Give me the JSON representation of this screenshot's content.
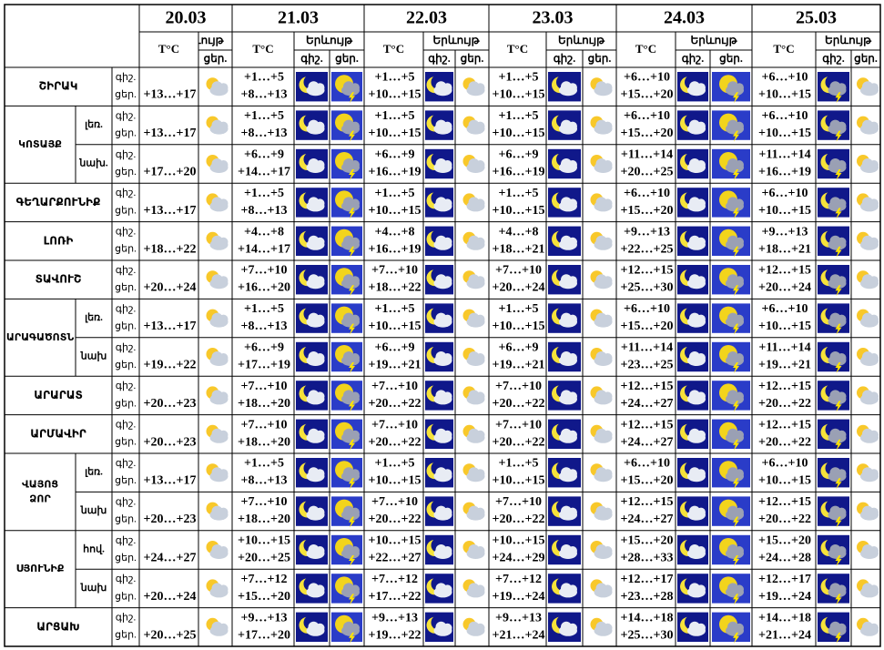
{
  "header": {
    "dates": [
      "20.03",
      "21.03",
      "22.03",
      "23.03",
      "24.03",
      "25.03"
    ],
    "temp_label": "T°C",
    "phenomenon_label": "Երևույթ",
    "night_label": "գիշ.",
    "day_label": "ցեր."
  },
  "regions": [
    {
      "name": "ՇԻՐԱԿ",
      "rows": [
        {
          "day": [
            "+13…+17",
            "+8…+13",
            "+10…+15",
            "+10…+15",
            "+15…+20",
            "+10…+15"
          ],
          "night": [
            "+1…+5",
            "+1…+5",
            "+1…+5",
            "+6…+10",
            "+6…+10"
          ]
        }
      ]
    },
    {
      "name": "ԿՈՏԱՅՔ",
      "rows": [
        {
          "zone": "լեռ.",
          "day": [
            "+13…+17",
            "+8…+13",
            "+10…+15",
            "+10…+15",
            "+15…+20",
            "+10…+15"
          ],
          "night": [
            "+1…+5",
            "+1…+5",
            "+1…+5",
            "+6…+10",
            "+6…+10"
          ]
        },
        {
          "zone": "նախ.",
          "day": [
            "+17…+20",
            "+14…+17",
            "+16…+19",
            "+16…+19",
            "+20…+25",
            "+16…+19"
          ],
          "night": [
            "+6…+9",
            "+6…+9",
            "+6…+9",
            "+11…+14",
            "+11…+14"
          ]
        }
      ]
    },
    {
      "name": "ԳԵՂԱՐՔՈՒՆԻՔ",
      "rows": [
        {
          "day": [
            "+13…+17",
            "+8…+13",
            "+10…+15",
            "+10…+15",
            "+15…+20",
            "+10…+15"
          ],
          "night": [
            "+1…+5",
            "+1…+5",
            "+1…+5",
            "+6…+10",
            "+6…+10"
          ]
        }
      ]
    },
    {
      "name": "ԼՈՌԻ",
      "rows": [
        {
          "day": [
            "+18…+22",
            "+14…+17",
            "+16…+19",
            "+18…+21",
            "+22…+25",
            "+18…+21"
          ],
          "night": [
            "+4…+8",
            "+4…+8",
            "+4…+8",
            "+9…+13",
            "+9…+13"
          ]
        }
      ]
    },
    {
      "name": "ՏԱՎՈՒՇ",
      "rows": [
        {
          "day": [
            "+20…+24",
            "+16…+20",
            "+18…+22",
            "+20…+24",
            "+25…+30",
            "+20…+24"
          ],
          "night": [
            "+7…+10",
            "+7…+10",
            "+7…+10",
            "+12…+15",
            "+12…+15"
          ]
        }
      ]
    },
    {
      "name": "ԱՐԱԳԱԾՈՏՆ",
      "rows": [
        {
          "zone": "լեռ.",
          "day": [
            "+13…+17",
            "+8…+13",
            "+10…+15",
            "+10…+15",
            "+15…+20",
            "+10…+15"
          ],
          "night": [
            "+1…+5",
            "+1…+5",
            "+1…+5",
            "+6…+10",
            "+6…+10"
          ]
        },
        {
          "zone": "նախ",
          "day": [
            "+19…+22",
            "+17…+19",
            "+19…+21",
            "+19…+21",
            "+23…+25",
            "+19…+21"
          ],
          "night": [
            "+6…+9",
            "+6…+9",
            "+6…+9",
            "+11…+14",
            "+11…+14"
          ]
        }
      ]
    },
    {
      "name": "ԱՐԱՐԱՏ",
      "rows": [
        {
          "day": [
            "+20…+23",
            "+18…+20",
            "+20…+22",
            "+20…+22",
            "+24…+27",
            "+20…+22"
          ],
          "night": [
            "+7…+10",
            "+7…+10",
            "+7…+10",
            "+12…+15",
            "+12…+15"
          ]
        }
      ]
    },
    {
      "name": "ԱՐՄԱՎԻՐ",
      "rows": [
        {
          "day": [
            "+20…+23",
            "+18…+20",
            "+20…+22",
            "+20…+22",
            "+24…+27",
            "+20…+22"
          ],
          "night": [
            "+7…+10",
            "+7…+10",
            "+7…+10",
            "+12…+15",
            "+12…+15"
          ]
        }
      ]
    },
    {
      "name": "ՎԱՅՈՑ ՁՈՐ",
      "rows": [
        {
          "zone": "լեռ.",
          "day": [
            "+13…+17",
            "+8…+13",
            "+10…+15",
            "+10…+15",
            "+15…+20",
            "+10…+15"
          ],
          "night": [
            "+1…+5",
            "+1…+5",
            "+1…+5",
            "+6…+10",
            "+6…+10"
          ]
        },
        {
          "zone": "նախ",
          "day": [
            "+20…+23",
            "+18…+20",
            "+20…+22",
            "+20…+22",
            "+24…+27",
            "+20…+22"
          ],
          "night": [
            "+7…+10",
            "+7…+10",
            "+7…+10",
            "+12…+15",
            "+12…+15"
          ]
        }
      ]
    },
    {
      "name": "ՍՅՈՒՆԻՔ",
      "rows": [
        {
          "zone": "հով.",
          "day": [
            "+24…+27",
            "+20…+25",
            "+22…+27",
            "+24…+29",
            "+28…+33",
            "+24…+28"
          ],
          "night": [
            "+10…+15",
            "+10…+15",
            "+10…+15",
            "+15…+20",
            "+15…+20"
          ]
        },
        {
          "zone": "նախ",
          "day": [
            "+20…+24",
            "+15…+20",
            "+17…+22",
            "+19…+24",
            "+23…+28",
            "+19…+24"
          ],
          "night": [
            "+7…+12",
            "+7…+12",
            "+7…+12",
            "+12…+17",
            "+12…+17"
          ]
        }
      ]
    },
    {
      "name": "ԱՐՑԱԽ",
      "rows": [
        {
          "day": [
            "+20…+25",
            "+17…+20",
            "+19…+22",
            "+21…+24",
            "+25…+30",
            "+21…+24"
          ],
          "night": [
            "+9…+13",
            "+9…+13",
            "+9…+13",
            "+14…+18",
            "+14…+18"
          ]
        }
      ]
    }
  ]
}
